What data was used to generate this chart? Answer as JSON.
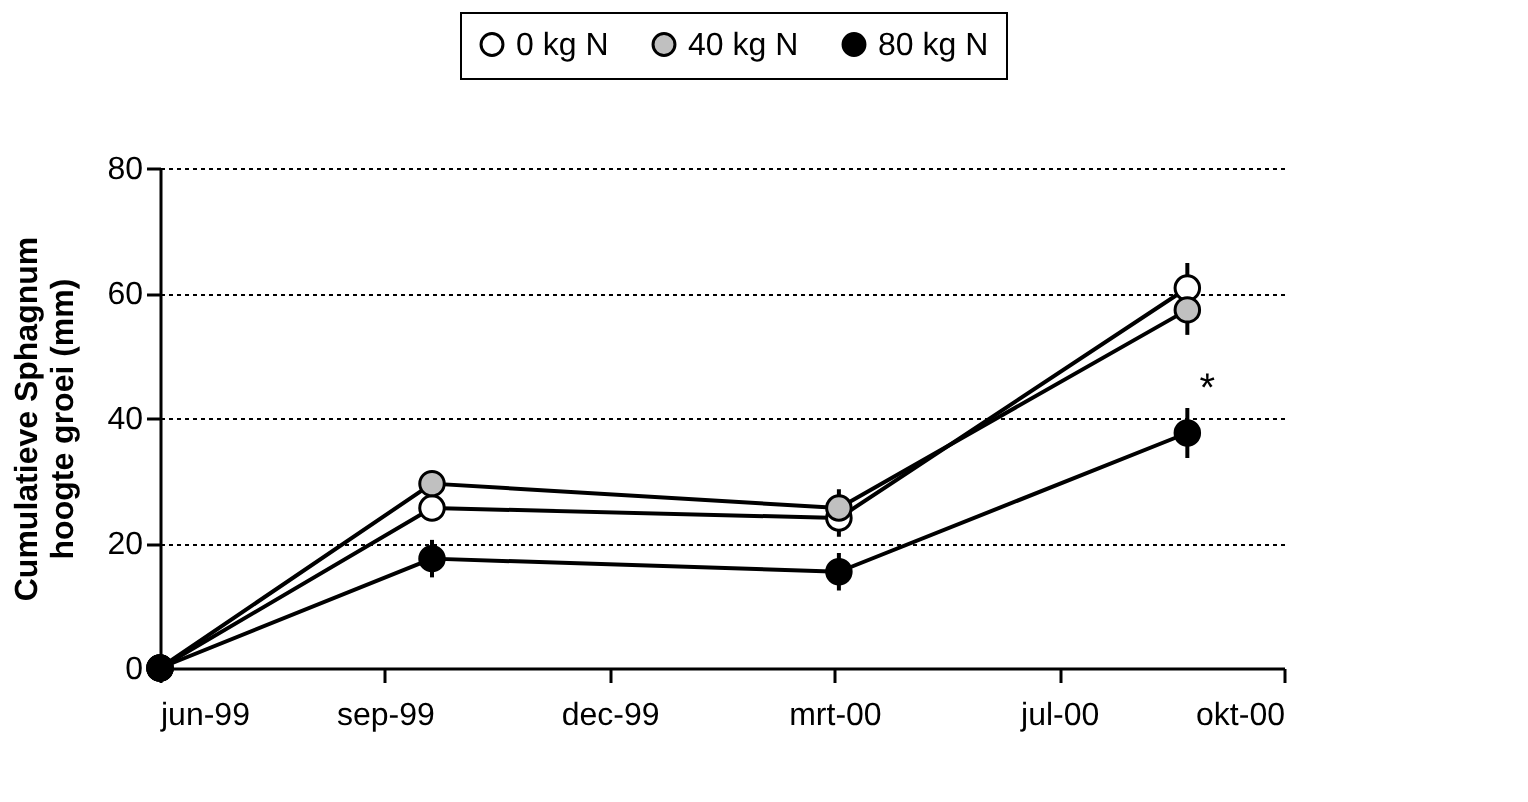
{
  "chart_data": {
    "type": "line",
    "ylabel": "Cumulatieve Sphagnum hoogte groei (mm)",
    "x": [
      "1999-06-01",
      "1999-09-30",
      "2000-03-29",
      "2000-08-31"
    ],
    "series": [
      {
        "name": "0 kg N",
        "color": "#ffffff",
        "values": [
          0,
          25.6,
          24,
          60.8
        ],
        "errors": [
          null,
          2,
          3,
          4
        ]
      },
      {
        "name": "40 kg N",
        "color": "#c0c0c0",
        "values": [
          0,
          29.5,
          25.6,
          57.3
        ],
        "errors": [
          null,
          2,
          3,
          4
        ]
      },
      {
        "name": "80 kg N",
        "color": "#000000",
        "values": [
          0,
          17.5,
          15.4,
          37.6
        ],
        "errors": [
          null,
          3,
          3,
          4
        ]
      }
    ],
    "xlim": [
      "1999-06-01",
      "2000-10-13"
    ],
    "xticks": [
      {
        "value": "1999-06-01",
        "label": "jun-99"
      },
      {
        "value": "1999-09-09",
        "label": "sep-99"
      },
      {
        "value": "1999-12-18",
        "label": "dec-99"
      },
      {
        "value": "2000-03-27",
        "label": "mrt-00"
      },
      {
        "value": "2000-07-05",
        "label": "jul-00"
      },
      {
        "value": "2000-10-13",
        "label": "okt-00"
      }
    ],
    "ylim": [
      0,
      80
    ],
    "yticks": [
      0,
      20,
      40,
      60,
      80
    ],
    "annotations": [
      {
        "text": "*",
        "x": "2000-08-31",
        "y": 37.6
      }
    ],
    "grid": "y",
    "legend": "top",
    "marker": "circle",
    "line_style": "solid"
  }
}
